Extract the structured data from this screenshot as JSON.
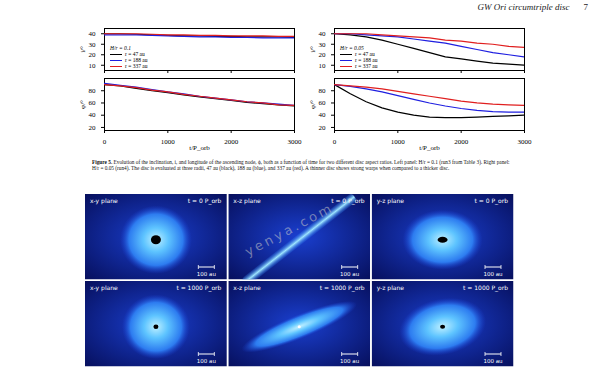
{
  "header": {
    "title": "GW Ori circumtriple disc",
    "page": "7"
  },
  "chart_data": [
    {
      "type": "line",
      "annotation": "H/r = 0.1",
      "legend": "bottom-left",
      "tick_labels": "y",
      "x": [
        0,
        250,
        500,
        750,
        1000,
        1250,
        1500,
        1750,
        2000,
        2250,
        2500,
        2750,
        3000
      ],
      "xlim": [
        0,
        3000
      ],
      "xticks": [
        0,
        1000,
        2000,
        3000
      ],
      "ylabel": "i/°",
      "ylim": [
        5,
        45
      ],
      "yticks": [
        10,
        20,
        30,
        40
      ],
      "series": [
        {
          "name": "r = 47 au",
          "color": "#000000",
          "values": [
            40,
            40,
            39.5,
            39,
            38.5,
            38,
            38,
            37.5,
            37.5,
            37,
            37,
            37,
            36.5
          ]
        },
        {
          "name": "r = 188 au",
          "color": "#1f1fe0",
          "values": [
            39,
            39,
            39,
            38.5,
            38,
            37.5,
            37,
            37,
            36.5,
            36.5,
            36,
            36,
            36
          ]
        },
        {
          "name": "r = 337 au",
          "color": "#e01f1f",
          "values": [
            40,
            40,
            40,
            39.5,
            39,
            39,
            38.5,
            38.5,
            38,
            38,
            38,
            37.5,
            37.5
          ]
        }
      ]
    },
    {
      "type": "line",
      "x": [
        0,
        250,
        500,
        750,
        1000,
        1250,
        1500,
        1750,
        2000,
        2250,
        2500,
        2750,
        3000
      ],
      "xlabel": "t/P_orb",
      "xlim": [
        0,
        3000
      ],
      "xticks": [
        0,
        1000,
        2000,
        3000
      ],
      "ylabel": "φ/°",
      "ylim": [
        15,
        100
      ],
      "yticks": [
        20,
        40,
        60,
        80
      ],
      "series": [
        {
          "name": "r = 47 au",
          "color": "#000000",
          "values": [
            90,
            88,
            84,
            80,
            77,
            73,
            70,
            67,
            64,
            61,
            59,
            57,
            55
          ]
        },
        {
          "name": "r = 188 au",
          "color": "#1f1fe0",
          "values": [
            92,
            89,
            86,
            82,
            78,
            75,
            71,
            68,
            65,
            62,
            60,
            58,
            56
          ]
        },
        {
          "name": "r = 337 au",
          "color": "#e01f1f",
          "values": [
            90,
            88,
            85,
            81,
            78,
            74,
            71,
            68,
            65,
            62,
            60,
            57,
            56
          ]
        }
      ]
    },
    {
      "type": "line",
      "annotation": "H/r = 0.05",
      "legend": "bottom-left",
      "tick_labels": "y",
      "x": [
        0,
        250,
        500,
        750,
        1000,
        1250,
        1500,
        1750,
        2000,
        2250,
        2500,
        2750,
        3000
      ],
      "xlim": [
        0,
        3000
      ],
      "xticks": [
        0,
        1000,
        2000,
        3000
      ],
      "ylabel": "i/°",
      "ylim": [
        5,
        45
      ],
      "yticks": [
        10,
        20,
        30,
        40
      ],
      "series": [
        {
          "name": "r = 47 au",
          "color": "#000000",
          "values": [
            40,
            39,
            37,
            34,
            30,
            26,
            22,
            18,
            16,
            14,
            12,
            11,
            10
          ]
        },
        {
          "name": "r = 188 au",
          "color": "#1f1fe0",
          "values": [
            40,
            40,
            39,
            38,
            37,
            35,
            33,
            31,
            28,
            25,
            22,
            20,
            18
          ]
        },
        {
          "name": "r = 337 au",
          "color": "#e01f1f",
          "values": [
            40,
            40,
            40,
            39,
            38,
            37,
            36,
            34,
            33,
            31,
            30,
            28,
            27
          ]
        }
      ]
    },
    {
      "type": "line",
      "x": [
        0,
        250,
        500,
        750,
        1000,
        1250,
        1500,
        1750,
        2000,
        2250,
        2500,
        2750,
        3000
      ],
      "xlabel": "t/P_orb",
      "xlim": [
        0,
        3000
      ],
      "xticks": [
        0,
        1000,
        2000,
        3000
      ],
      "ylabel": "φ/°",
      "ylim": [
        15,
        100
      ],
      "yticks": [
        20,
        40,
        60,
        80
      ],
      "series": [
        {
          "name": "r = 47 au",
          "color": "#000000",
          "values": [
            90,
            75,
            62,
            52,
            45,
            40,
            37,
            36,
            36,
            37,
            38,
            39,
            40
          ]
        },
        {
          "name": "r = 188 au",
          "color": "#1f1fe0",
          "values": [
            90,
            87,
            83,
            78,
            72,
            66,
            60,
            55,
            51,
            48,
            46,
            45,
            45
          ]
        },
        {
          "name": "r = 337 au",
          "color": "#e01f1f",
          "values": [
            90,
            88,
            86,
            83,
            79,
            75,
            71,
            67,
            63,
            60,
            58,
            57,
            56
          ]
        }
      ]
    }
  ],
  "caption": {
    "label": "Figure 5.",
    "text": "Evolution of the inclination, i, and longitude of the ascending node, ϕ, both as a function of time for two different disc aspect ratios. Left panel: H/r = 0.1 (run3 from Table 3). Right panel: H/r = 0.05 (run4). The disc is evaluated at three radii, 47 au (black), 188 au (blue), and 337 au (red). A thinner disc shows strong warps when compared to a thicker disc."
  },
  "images": [
    {
      "plane": "x-y plane",
      "time": "t = 0 P_orb",
      "scale": "100 au"
    },
    {
      "plane": "x-z plane",
      "time": "t = 0 P_orb",
      "scale": "100 au"
    },
    {
      "plane": "y-z plane",
      "time": "t = 0 P_orb",
      "scale": "100 au"
    },
    {
      "plane": "x-y plane",
      "time": "t = 1000 P_orb",
      "scale": "100 au"
    },
    {
      "plane": "x-z plane",
      "time": "t = 1000 P_orb",
      "scale": "100 au"
    },
    {
      "plane": "y-z plane",
      "time": "t = 1000 P_orb",
      "scale": "100 au"
    }
  ],
  "watermark": "yenya.com"
}
